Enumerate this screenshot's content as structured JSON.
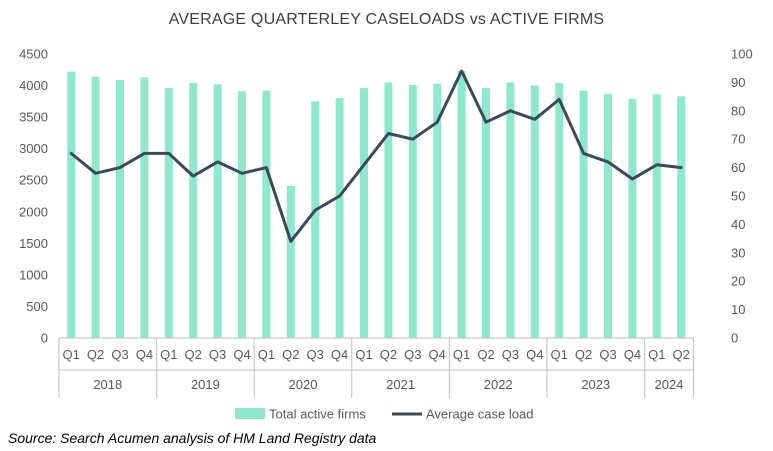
{
  "chart_data": {
    "type": "bar",
    "title": "AVERAGE QUARTERLEY CASELOADS vs ACTIVE FIRMS",
    "categories": [
      "Q1",
      "Q2",
      "Q3",
      "Q4",
      "Q1",
      "Q2",
      "Q3",
      "Q4",
      "Q1",
      "Q2",
      "Q3",
      "Q4",
      "Q1",
      "Q2",
      "Q3",
      "Q4",
      "Q1",
      "Q2",
      "Q3",
      "Q4",
      "Q1",
      "Q2",
      "Q3",
      "Q4",
      "Q1",
      "Q2"
    ],
    "years": [
      {
        "label": "2018",
        "quarters": 4
      },
      {
        "label": "2019",
        "quarters": 4
      },
      {
        "label": "2020",
        "quarters": 4
      },
      {
        "label": "2021",
        "quarters": 4
      },
      {
        "label": "2022",
        "quarters": 4
      },
      {
        "label": "2023",
        "quarters": 4
      },
      {
        "label": "2024",
        "quarters": 2
      }
    ],
    "series": [
      {
        "name": "Total active firms",
        "type": "bar",
        "axis": "left",
        "color": "#8ee8cd",
        "values": [
          4220,
          4140,
          4090,
          4130,
          3960,
          4040,
          4020,
          3910,
          3920,
          2410,
          3750,
          3800,
          3960,
          4050,
          4010,
          4030,
          4230,
          3960,
          4050,
          4000,
          4040,
          3920,
          3870,
          3790,
          3860,
          3830
        ]
      },
      {
        "name": "Average case load",
        "type": "line",
        "axis": "right",
        "color": "#3a4a5c",
        "values": [
          65,
          58,
          60,
          65,
          65,
          57,
          62,
          58,
          60,
          34,
          45,
          50,
          61,
          72,
          70,
          76,
          94,
          76,
          80,
          77,
          84,
          65,
          62,
          56,
          61,
          60
        ]
      }
    ],
    "y_left": {
      "min": 0,
      "max": 4500,
      "step": 500,
      "ticks": [
        "0",
        "500",
        "1000",
        "1500",
        "2000",
        "2500",
        "3000",
        "3500",
        "4000",
        "4500"
      ]
    },
    "y_right": {
      "min": 0,
      "max": 100,
      "step": 10,
      "ticks": [
        "0",
        "10",
        "20",
        "30",
        "40",
        "50",
        "60",
        "70",
        "80",
        "90",
        "100"
      ]
    },
    "grid": false,
    "legend": "bottom"
  },
  "source": "Source: Search Acumen analysis of HM Land Registry data"
}
